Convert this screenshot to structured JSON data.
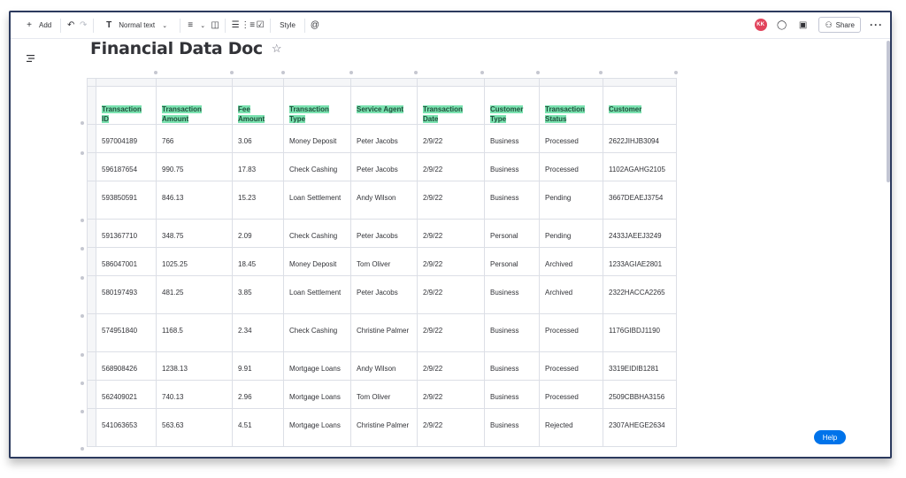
{
  "toolbar": {
    "add_label": "Add",
    "normal_text_label": "Normal text",
    "style_label": "Style",
    "avatar_initials": "KK",
    "share_label": "Share"
  },
  "document": {
    "title": "Financial Data Doc"
  },
  "table": {
    "headers": [
      "Transaction ID",
      "Transaction Amount",
      "Fee Amount",
      "Transaction Type",
      "Service Agent",
      "Transaction Date",
      "Customer Type",
      "Transaction Status",
      "Customer"
    ],
    "rows": [
      [
        "597004189",
        "766",
        "3.06",
        "Money Deposit",
        "Peter Jacobs",
        "2/9/22",
        "Business",
        "Processed",
        "2622JIHJB3094"
      ],
      [
        "596187654",
        "990.75",
        "17.83",
        "Check Cashing",
        "Peter Jacobs",
        "2/9/22",
        "Business",
        "Processed",
        "1102AGAHG2105"
      ],
      [
        "593850591",
        "846.13",
        "15.23",
        "Loan Settlement",
        "Andy Wilson",
        "2/9/22",
        "Business",
        "Pending",
        "3667DEAEJ3754"
      ],
      [
        "591367710",
        "348.75",
        "2.09",
        "Check Cashing",
        "Peter Jacobs",
        "2/9/22",
        "Personal",
        "Pending",
        "2433JAEEJ3249"
      ],
      [
        "586047001",
        "1025.25",
        "18.45",
        "Money Deposit",
        "Tom Oliver",
        "2/9/22",
        "Personal",
        "Archived",
        "1233AGIAE2801"
      ],
      [
        "580197493",
        "481.25",
        "3.85",
        "Loan Settlement",
        "Peter Jacobs",
        "2/9/22",
        "Business",
        "Archived",
        "2322HACCA2265"
      ],
      [
        "574951840",
        "1168.5",
        "2.34",
        "Check Cashing",
        "Christine Palmer",
        "2/9/22",
        "Business",
        "Processed",
        "1176GIBDJ1190"
      ],
      [
        "568908426",
        "1238.13",
        "9.91",
        "Mortgage Loans",
        "Andy Wilson",
        "2/9/22",
        "Business",
        "Processed",
        "3319EIDIB1281"
      ],
      [
        "562409021",
        "740.13",
        "2.96",
        "Mortgage Loans",
        "Tom Oliver",
        "2/9/22",
        "Business",
        "Processed",
        "2509CBBHA3156"
      ],
      [
        "541063653",
        "563.63",
        "4.51",
        "Mortgage Loans",
        "Christine Palmer",
        "2/9/22",
        "Business",
        "Rejected",
        "2307AHEGE2634"
      ]
    ]
  },
  "help": {
    "label": "Help"
  },
  "colors": {
    "header_highlight": "#7be2b0",
    "help_button": "#0073ea",
    "avatar": "#e2445c",
    "frame_border": "#2c3a5e"
  }
}
